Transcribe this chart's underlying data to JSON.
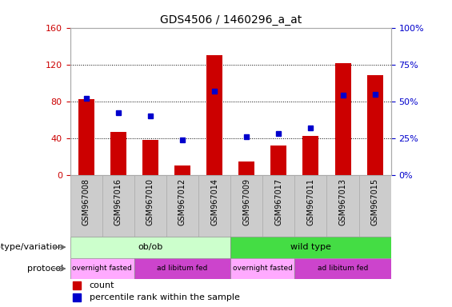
{
  "title": "GDS4506 / 1460296_a_at",
  "samples": [
    "GSM967008",
    "GSM967016",
    "GSM967010",
    "GSM967012",
    "GSM967014",
    "GSM967009",
    "GSM967017",
    "GSM967011",
    "GSM967013",
    "GSM967015"
  ],
  "counts": [
    82,
    47,
    38,
    10,
    130,
    15,
    32,
    42,
    121,
    108
  ],
  "percentile": [
    52,
    42,
    40,
    24,
    57,
    26,
    28,
    32,
    54,
    55
  ],
  "ylim_left": [
    0,
    160
  ],
  "ylim_right": [
    0,
    100
  ],
  "yticks_left": [
    0,
    40,
    80,
    120,
    160
  ],
  "yticks_right": [
    0,
    25,
    50,
    75,
    100
  ],
  "bar_color": "#cc0000",
  "dot_color": "#0000cc",
  "bar_width": 0.5,
  "genotype_groups": [
    {
      "label": "ob/ob",
      "start": 0,
      "end": 5,
      "color": "#ccffcc"
    },
    {
      "label": "wild type",
      "start": 5,
      "end": 10,
      "color": "#44dd44"
    }
  ],
  "protocol_groups": [
    {
      "label": "overnight fasted",
      "start": 0,
      "end": 2,
      "color": "#ffaaff"
    },
    {
      "label": "ad libitum fed",
      "start": 2,
      "end": 5,
      "color": "#cc44cc"
    },
    {
      "label": "overnight fasted",
      "start": 5,
      "end": 7,
      "color": "#ffaaff"
    },
    {
      "label": "ad libitum fed",
      "start": 7,
      "end": 10,
      "color": "#cc44cc"
    }
  ],
  "left_label_genotype": "genotype/variation",
  "left_label_protocol": "protocol",
  "legend_count_label": "count",
  "legend_pct_label": "percentile rank within the sample",
  "tick_label_color_left": "#cc0000",
  "tick_label_color_right": "#0000cc",
  "bg_color": "#ffffff",
  "xticklabel_bg": "#cccccc"
}
